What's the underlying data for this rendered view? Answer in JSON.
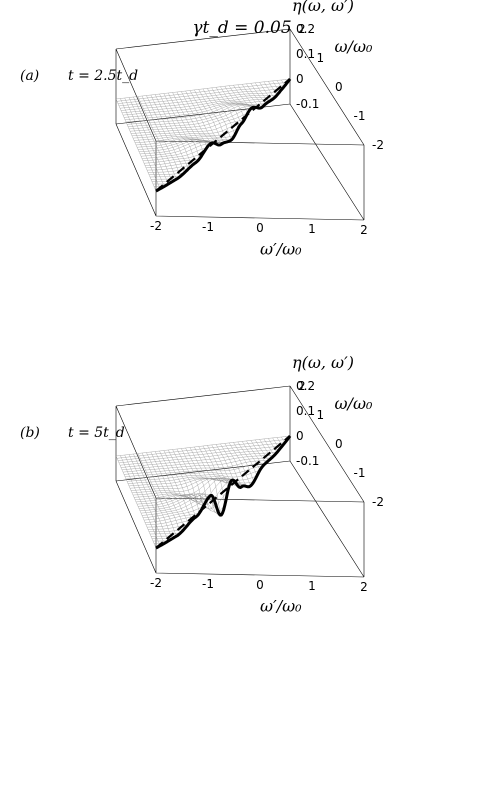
{
  "figure": {
    "title": "γt_d = 0.05"
  },
  "chart_data": [
    {
      "type": "surface",
      "panel_label": "(a)",
      "time_label": "t = 2.5t_d",
      "xlabel": "ω′/ω₀",
      "ylabel": "ω/ω₀",
      "zlabel": "η(ω, ω′)",
      "x_ticks": [
        "-2",
        "-1",
        "0",
        "1",
        "2"
      ],
      "y_ticks": [
        "-2",
        "-1",
        "0",
        "1",
        "2"
      ],
      "z_ticks": [
        "0.2",
        "0.1",
        "0",
        "-0.1"
      ],
      "xlim": [
        -2,
        2
      ],
      "ylim": [
        -2,
        2
      ],
      "zlim": [
        -0.1,
        0.2
      ],
      "diagonal_cut": {
        "x": [
          -2,
          -1.5,
          -1.0,
          -0.6,
          -0.3,
          0,
          0.3,
          0.6,
          1.0,
          1.5,
          2
        ],
        "y": [
          0,
          0.002,
          0.02,
          0.055,
          0.02,
          0.005,
          0.035,
          0.06,
          0.02,
          0.002,
          0
        ]
      }
    },
    {
      "type": "surface",
      "panel_label": "(b)",
      "time_label": "t = 5t_d",
      "xlabel": "ω′/ω₀",
      "ylabel": "ω/ω₀",
      "zlabel": "η(ω, ω′)",
      "x_ticks": [
        "-2",
        "-1",
        "0",
        "1",
        "2"
      ],
      "y_ticks": [
        "-2",
        "-1",
        "0",
        "1",
        "2"
      ],
      "z_ticks": [
        "0.2",
        "0.1",
        "0",
        "-0.1"
      ],
      "xlim": [
        -2,
        2
      ],
      "ylim": [
        -2,
        2
      ],
      "zlim": [
        -0.1,
        0.2
      ],
      "diagonal_cut": {
        "x": [
          -2,
          -1.5,
          -1.0,
          -0.6,
          -0.3,
          0,
          0.3,
          0.6,
          1.0,
          1.5,
          2
        ],
        "y": [
          0,
          0.002,
          0.03,
          0.075,
          -0.035,
          0.07,
          0.01,
          -0.02,
          0.01,
          0.001,
          0
        ]
      }
    }
  ]
}
